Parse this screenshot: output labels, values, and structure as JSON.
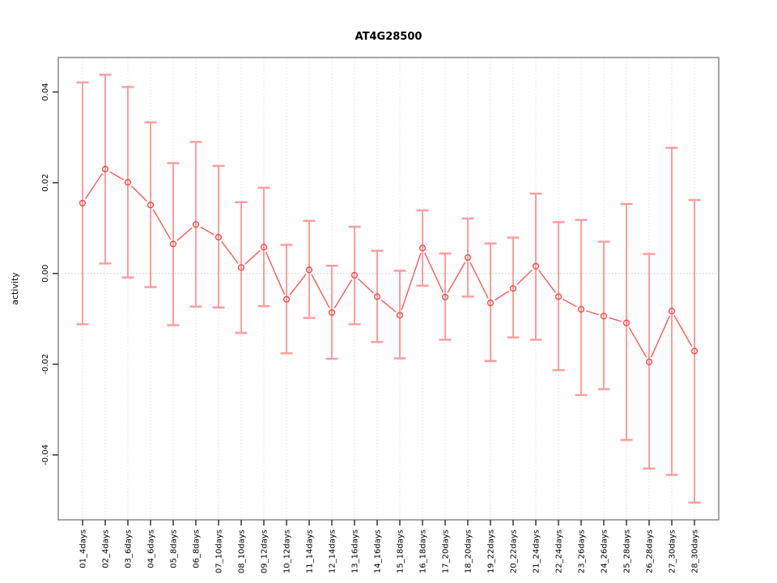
{
  "chart_data": {
    "type": "line",
    "subtype": "points-with-error-bars",
    "title": "AT4G28500",
    "xlabel": "",
    "ylabel": "activity",
    "legend_position": "none",
    "grid": {
      "vertical_dotted": true,
      "horizontal_zero_line_dotted": true
    },
    "ylim": [
      -0.0543,
      0.0476
    ],
    "yticks": [
      -0.04,
      -0.02,
      0.0,
      0.02,
      0.04
    ],
    "ytick_labels": [
      "-0.04",
      "-0.02",
      "0.00",
      "0.02",
      "0.04"
    ],
    "categories": [
      "01_4days",
      "02_4days",
      "03_6days",
      "04_6days",
      "05_8days",
      "06_8days",
      "07_10days",
      "08_10days",
      "09_12days",
      "10_12days",
      "11_14days",
      "12_14days",
      "13_16days",
      "14_16days",
      "15_18days",
      "16_18days",
      "17_20days",
      "18_20days",
      "19_22days",
      "20_22days",
      "21_24days",
      "22_24days",
      "23_26days",
      "24_26days",
      "25_28days",
      "26_28days",
      "27_30days",
      "28_30days"
    ],
    "series": [
      {
        "name": "activity",
        "values": [
          0.0155,
          0.023,
          0.0201,
          0.0151,
          0.0065,
          0.0108,
          0.008,
          0.0013,
          0.0058,
          -0.0057,
          0.0008,
          -0.0086,
          -0.0004,
          -0.0051,
          -0.0092,
          0.0056,
          -0.0052,
          0.0035,
          -0.0065,
          -0.0033,
          0.0016,
          -0.0051,
          -0.0079,
          -0.0094,
          -0.0109,
          -0.0195,
          -0.0083,
          -0.0171
        ],
        "error_upper": [
          0.0421,
          0.0438,
          0.0411,
          0.0333,
          0.0243,
          0.029,
          0.0237,
          0.0157,
          0.0189,
          0.0063,
          0.0116,
          0.0017,
          0.0103,
          0.005,
          0.0006,
          0.0139,
          0.0044,
          0.0121,
          0.0066,
          0.0079,
          0.0176,
          0.0113,
          0.0118,
          0.007,
          0.0153,
          0.0043,
          0.0277,
          0.0162
        ],
        "error_lower": [
          -0.0112,
          0.0022,
          -0.0009,
          -0.003,
          -0.0114,
          -0.0073,
          -0.0075,
          -0.0131,
          -0.0072,
          -0.0176,
          -0.0098,
          -0.0188,
          -0.0112,
          -0.0151,
          -0.0187,
          -0.0027,
          -0.0146,
          -0.0051,
          -0.0193,
          -0.0141,
          -0.0146,
          -0.0213,
          -0.0268,
          -0.0255,
          -0.0367,
          -0.043,
          -0.0444,
          -0.0505
        ]
      }
    ],
    "colors": {
      "line": "#fb5a5a",
      "point_stroke": "#fa4646",
      "error_bar": "#ff9d9d",
      "grid_line": "#dedede",
      "zero_line": "#cccccc",
      "axis_box": "#888888",
      "tick_mark": "#333333",
      "text": "#000000"
    }
  }
}
